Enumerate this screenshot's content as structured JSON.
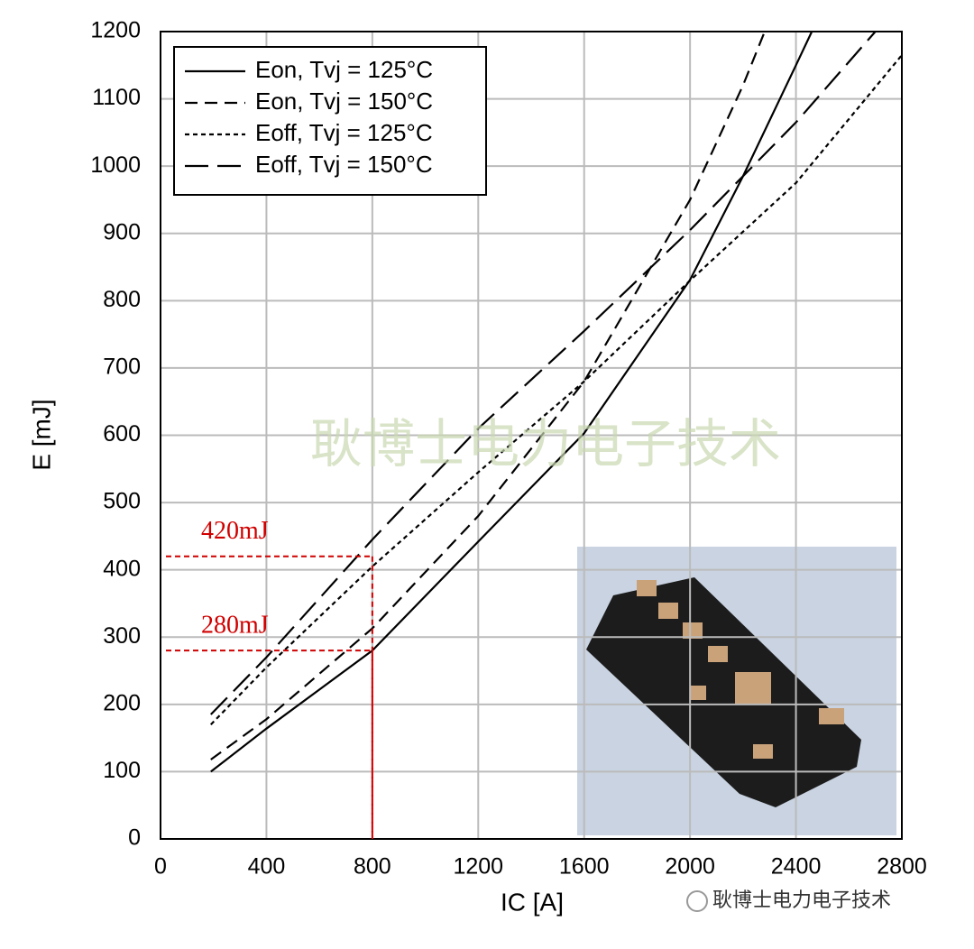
{
  "chart_data": {
    "type": "line",
    "xlabel": "IC [A]",
    "ylabel": "E [mJ]",
    "xlim": [
      0,
      2800
    ],
    "ylim": [
      0,
      1200
    ],
    "xticks": [
      0,
      400,
      800,
      1200,
      1600,
      2000,
      2400,
      2800
    ],
    "yticks": [
      0,
      100,
      200,
      300,
      400,
      500,
      600,
      700,
      800,
      900,
      1000,
      1100,
      1200
    ],
    "grid": true,
    "legend": "upper left",
    "series": [
      {
        "name": "Eon, Tvj = 125°C",
        "color": "#000000",
        "linestyle": "solid",
        "x": [
          190,
          400,
          800,
          1200,
          1600,
          2000,
          2200,
          2400,
          2460
        ],
        "values": [
          100,
          164,
          280,
          442,
          603,
          831,
          985,
          1150,
          1200
        ]
      },
      {
        "name": "Eon, Tvj = 150°C",
        "color": "#000000",
        "linestyle": "dashed",
        "x": [
          190,
          400,
          800,
          1200,
          1600,
          2000,
          2200,
          2282
        ],
        "values": [
          118,
          178,
          313,
          480,
          680,
          950,
          1120,
          1200
        ]
      },
      {
        "name": "Eoff, Tvj = 125°C",
        "color": "#000000",
        "linestyle": "dotted",
        "x": [
          190,
          400,
          800,
          1200,
          1600,
          2000,
          2400,
          2800
        ],
        "values": [
          170,
          255,
          405,
          545,
          680,
          830,
          975,
          1165
        ]
      },
      {
        "name": "Eoff, Tvj = 150°C",
        "color": "#000000",
        "linestyle": "longdash",
        "x": [
          190,
          400,
          800,
          1200,
          1600,
          2000,
          2400,
          2700
        ],
        "values": [
          185,
          270,
          445,
          610,
          755,
          905,
          1065,
          1200
        ]
      }
    ],
    "annotations": [
      {
        "label": "420mJ",
        "value": 420,
        "x": 800,
        "color": "#d00000"
      },
      {
        "label": "280mJ",
        "value": 280,
        "x": 800,
        "color": "#d00000"
      }
    ],
    "watermark": "耿博士电力电子技术",
    "footer": "耿博士电力电子技术"
  }
}
